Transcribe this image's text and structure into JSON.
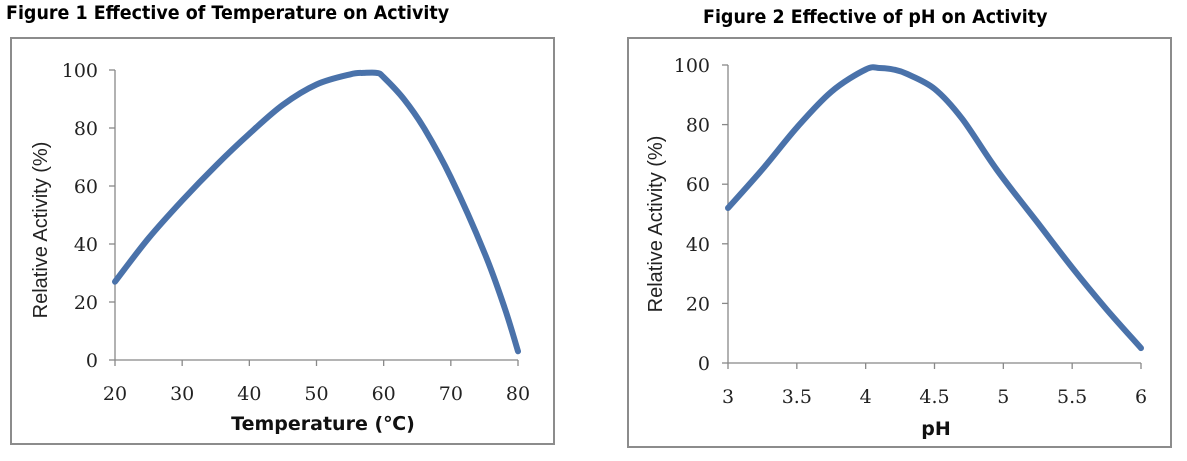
{
  "chart_data": [
    {
      "type": "line",
      "title": "Figure 1 Effective of Temperature on Activity",
      "xlabel": "Temperature (℃)",
      "ylabel": "Relative Activity (%)",
      "xlim": [
        20,
        80
      ],
      "ylim": [
        0,
        100
      ],
      "x_ticks": [
        "20",
        "30",
        "40",
        "50",
        "60",
        "70",
        "80"
      ],
      "y_ticks": [
        "0",
        "20",
        "40",
        "60",
        "80",
        "100"
      ],
      "series": [
        {
          "color": "#4a72aa",
          "x": [
            20,
            25,
            30,
            35,
            40,
            45,
            50,
            55,
            57,
            59,
            60,
            63,
            66,
            70,
            75,
            78,
            80
          ],
          "y": [
            27,
            42,
            55,
            67,
            78,
            88,
            95,
            98.5,
            99,
            99,
            97.5,
            90,
            80,
            63,
            37,
            18,
            3
          ]
        }
      ]
    },
    {
      "type": "line",
      "title": "Figure 2 Effective of pH on Activity",
      "xlabel": "pH",
      "ylabel": "Relative Activity (%)",
      "xlim": [
        3,
        6
      ],
      "ylim": [
        0,
        100
      ],
      "x_ticks": [
        "3",
        "3.5",
        "4",
        "4.5",
        "5",
        "5.5",
        "6"
      ],
      "y_ticks": [
        "0",
        "20",
        "40",
        "60",
        "80",
        "100"
      ],
      "series": [
        {
          "color": "#4a72aa",
          "x": [
            3,
            3.25,
            3.5,
            3.75,
            4,
            4.1,
            4.2,
            4.3,
            4.5,
            4.7,
            4.95,
            5.25,
            5.5,
            5.75,
            6
          ],
          "y": [
            52,
            65,
            79,
            91,
            98.5,
            99,
            98.5,
            97,
            92,
            82,
            65,
            47,
            32,
            18,
            5
          ]
        }
      ]
    }
  ]
}
